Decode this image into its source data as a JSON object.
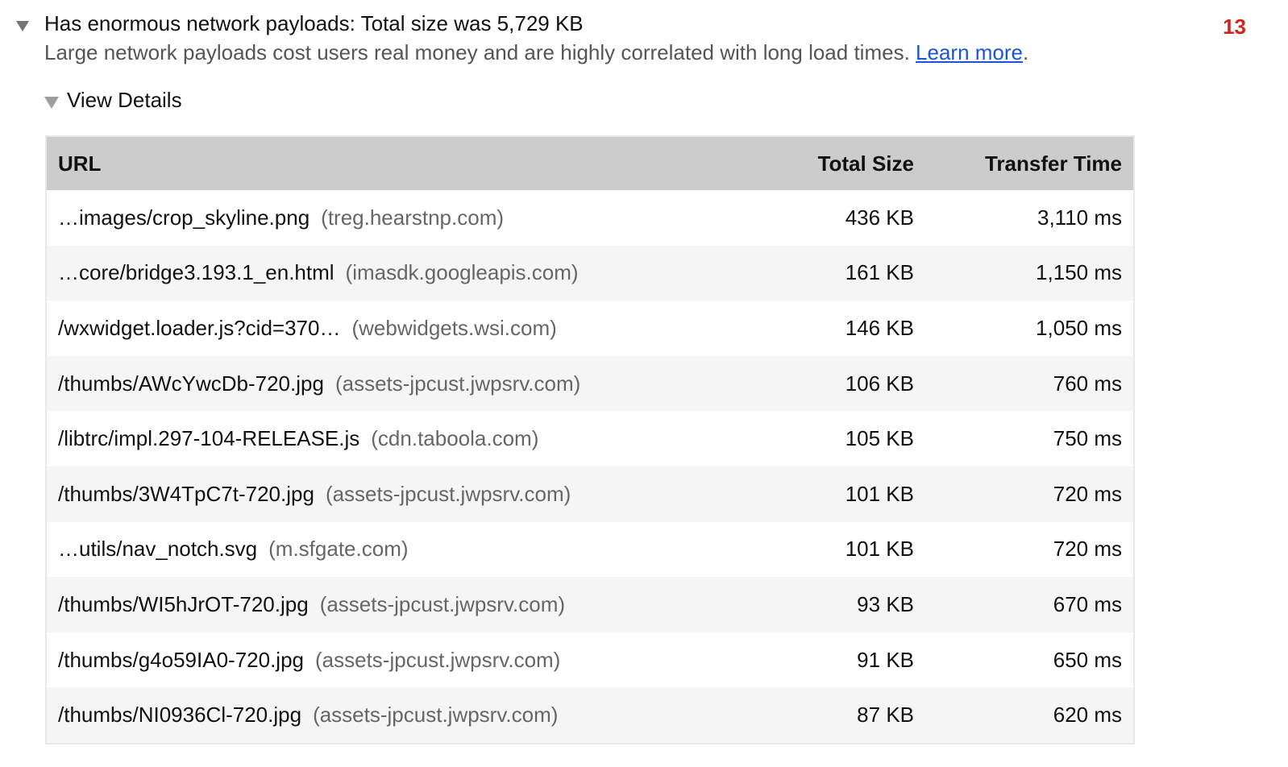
{
  "audit": {
    "title": "Has enormous network payloads: Total size was 5,729 KB",
    "description": "Large network payloads cost users real money and are highly correlated with long load times.",
    "learn_more": "Learn more",
    "period": ".",
    "score": "13",
    "score_color": "#d0261d"
  },
  "details": {
    "label": "View Details"
  },
  "table": {
    "headers": {
      "url": "URL",
      "size": "Total Size",
      "time": "Transfer Time"
    },
    "rows": [
      {
        "path": "…images/crop_skyline.png",
        "host": "(treg.hearstnp.com)",
        "size": "436 KB",
        "time": "3,110 ms"
      },
      {
        "path": "…core/bridge3.193.1_en.html",
        "host": "(imasdk.googleapis.com)",
        "size": "161 KB",
        "time": "1,150 ms"
      },
      {
        "path": "/wxwidget.loader.js?cid=370…",
        "host": "(webwidgets.wsi.com)",
        "size": "146 KB",
        "time": "1,050 ms"
      },
      {
        "path": "/thumbs/AWcYwcDb-720.jpg",
        "host": "(assets-jpcust.jwpsrv.com)",
        "size": "106 KB",
        "time": "760 ms"
      },
      {
        "path": "/libtrc/impl.297-104-RELEASE.js",
        "host": "(cdn.taboola.com)",
        "size": "105 KB",
        "time": "750 ms"
      },
      {
        "path": "/thumbs/3W4TpC7t-720.jpg",
        "host": "(assets-jpcust.jwpsrv.com)",
        "size": "101 KB",
        "time": "720 ms"
      },
      {
        "path": "…utils/nav_notch.svg",
        "host": "(m.sfgate.com)",
        "size": "101 KB",
        "time": "720 ms"
      },
      {
        "path": "/thumbs/WI5hJrOT-720.jpg",
        "host": "(assets-jpcust.jwpsrv.com)",
        "size": "93 KB",
        "time": "670 ms"
      },
      {
        "path": "/thumbs/g4o59IA0-720.jpg",
        "host": "(assets-jpcust.jwpsrv.com)",
        "size": "91 KB",
        "time": "650 ms"
      },
      {
        "path": "/thumbs/NI0936Cl-720.jpg",
        "host": "(assets-jpcust.jwpsrv.com)",
        "size": "87 KB",
        "time": "620 ms"
      }
    ]
  }
}
